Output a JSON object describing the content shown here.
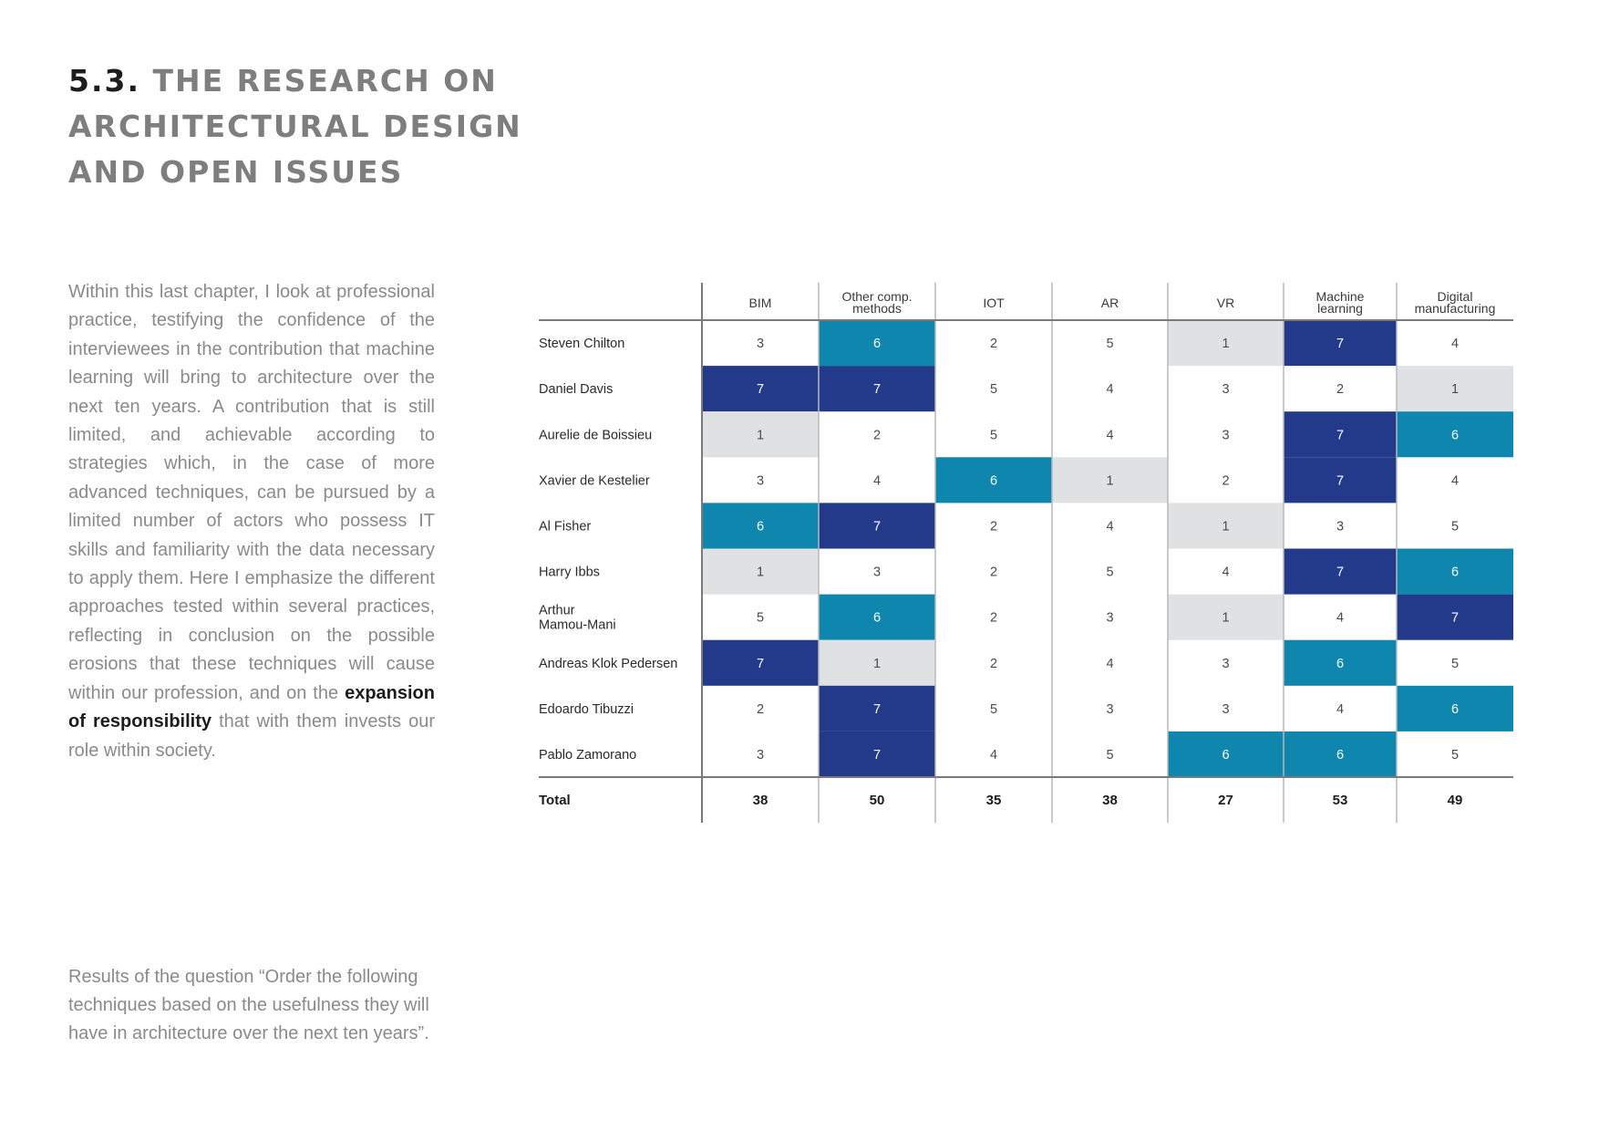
{
  "heading": {
    "number": "5.3.",
    "lines": [
      "THE RESEARCH ON",
      "ARCHITECTURAL DESIGN",
      "AND OPEN ISSUES"
    ]
  },
  "body": {
    "before_bold": "Within this last chapter, I look at professional practice, testifying the confidence of the interviewees in the contribution that machine learning will bring to architecture over the next ten years. A contribution that is still limited, and achievable according to strategies which, in the case of more advanced techniques, can be pursued by a limited number of actors who possess IT skills and familiarity with the data necessary to apply them. Here I emphasize the different approaches tested within several practices, reflecting in conclusion on the possible erosions that these techniques will cause within our profession, and on the",
    "bold": "expansion of responsibility",
    "after_bold": "that with them invests our role within society."
  },
  "caption": "Results of the question “Order the following techniques based on the usefulness they will have in architecture over the next ten years”.",
  "colors": {
    "value_7": "#233a8b",
    "value_6": "#0e86ad",
    "value_1": "#dfe1e3",
    "text_dark": "#1c1c1c",
    "text_light": "#ffffff",
    "grid": "#b9b9b9",
    "rule": "#7a7a7a"
  },
  "chart_data": {
    "type": "table",
    "columns": [
      [
        "BIM"
      ],
      [
        "Other comp.",
        "methods"
      ],
      [
        "IOT"
      ],
      [
        "AR"
      ],
      [
        "VR"
      ],
      [
        "Machine",
        "learning"
      ],
      [
        "Digital",
        "manufacturing"
      ]
    ],
    "rows": [
      {
        "name": [
          "Steven Chilton"
        ],
        "values": [
          3,
          6,
          2,
          5,
          1,
          7,
          4
        ]
      },
      {
        "name": [
          "Daniel Davis"
        ],
        "values": [
          7,
          7,
          5,
          4,
          3,
          2,
          1
        ]
      },
      {
        "name": [
          "Aurelie de Boissieu"
        ],
        "values": [
          1,
          2,
          5,
          4,
          3,
          7,
          6
        ]
      },
      {
        "name": [
          "Xavier de Kestelier"
        ],
        "values": [
          3,
          4,
          6,
          1,
          2,
          7,
          4
        ]
      },
      {
        "name": [
          "Al Fisher"
        ],
        "values": [
          6,
          7,
          2,
          4,
          1,
          3,
          5
        ]
      },
      {
        "name": [
          "Harry Ibbs"
        ],
        "values": [
          1,
          3,
          2,
          5,
          4,
          7,
          6
        ]
      },
      {
        "name": [
          "Arthur",
          "Mamou-Mani"
        ],
        "values": [
          5,
          6,
          2,
          3,
          1,
          4,
          7
        ]
      },
      {
        "name": [
          "Andreas Klok Pedersen"
        ],
        "values": [
          7,
          1,
          2,
          4,
          3,
          6,
          5
        ]
      },
      {
        "name": [
          "Edoardo Tibuzzi"
        ],
        "values": [
          2,
          7,
          5,
          3,
          3,
          4,
          6
        ]
      },
      {
        "name": [
          "Pablo Zamorano"
        ],
        "values": [
          3,
          7,
          4,
          5,
          6,
          6,
          5
        ]
      }
    ],
    "total_label": "Total",
    "totals": [
      38,
      50,
      35,
      38,
      27,
      53,
      49
    ]
  }
}
